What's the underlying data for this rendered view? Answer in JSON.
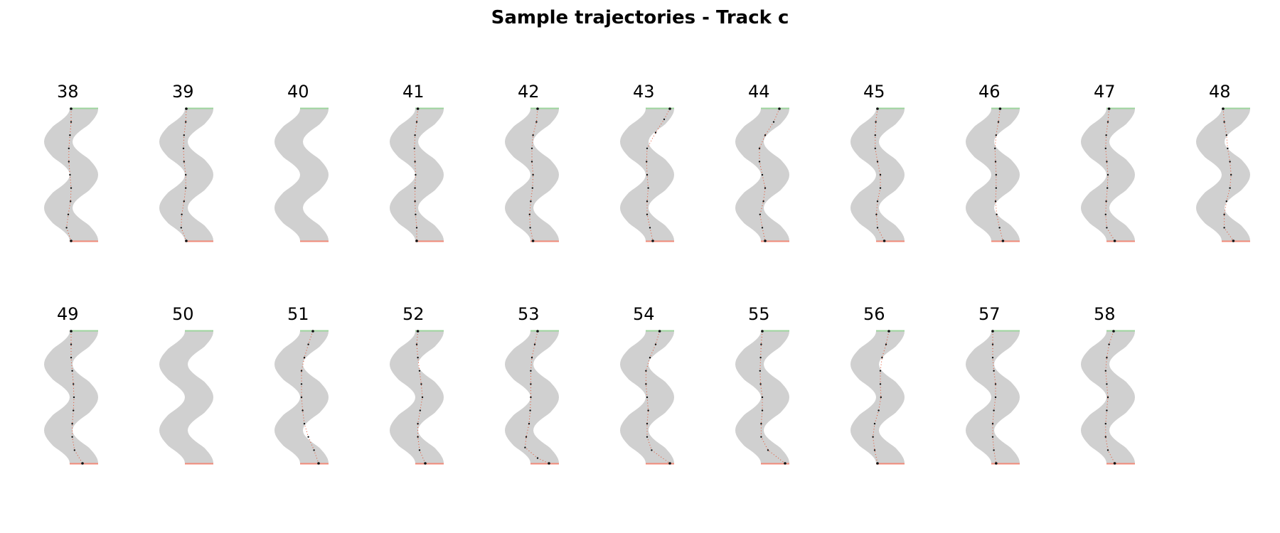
{
  "title": "Sample trajectories - Track c",
  "chart_data": {
    "type": "scatter",
    "title": "Sample trajectories - Track c",
    "panels": [
      {
        "label": "38",
        "trajectory": [
          [
            0.5,
            0.0
          ],
          [
            0.5,
            0.1
          ],
          [
            0.48,
            0.2
          ],
          [
            0.46,
            0.3
          ],
          [
            0.46,
            0.4
          ],
          [
            0.48,
            0.5
          ],
          [
            0.5,
            0.6
          ],
          [
            0.49,
            0.7
          ],
          [
            0.45,
            0.8
          ],
          [
            0.42,
            0.9
          ],
          [
            0.5,
            1.0
          ]
        ]
      },
      {
        "label": "39",
        "trajectory": [
          [
            0.5,
            0.0
          ],
          [
            0.49,
            0.1
          ],
          [
            0.46,
            0.2
          ],
          [
            0.45,
            0.3
          ],
          [
            0.46,
            0.4
          ],
          [
            0.49,
            0.5
          ],
          [
            0.49,
            0.6
          ],
          [
            0.46,
            0.7
          ],
          [
            0.42,
            0.8
          ],
          [
            0.41,
            0.9
          ],
          [
            0.5,
            1.0
          ]
        ]
      },
      {
        "label": "40",
        "trajectory": []
      },
      {
        "label": "41",
        "trajectory": [
          [
            0.52,
            0.0
          ],
          [
            0.5,
            0.1
          ],
          [
            0.47,
            0.2
          ],
          [
            0.46,
            0.3
          ],
          [
            0.47,
            0.4
          ],
          [
            0.48,
            0.5
          ],
          [
            0.47,
            0.6
          ],
          [
            0.47,
            0.7
          ],
          [
            0.48,
            0.8
          ],
          [
            0.5,
            0.9
          ],
          [
            0.5,
            1.0
          ]
        ]
      },
      {
        "label": "42",
        "trajectory": [
          [
            0.6,
            0.0
          ],
          [
            0.58,
            0.1
          ],
          [
            0.52,
            0.2
          ],
          [
            0.5,
            0.3
          ],
          [
            0.5,
            0.4
          ],
          [
            0.52,
            0.5
          ],
          [
            0.51,
            0.6
          ],
          [
            0.48,
            0.7
          ],
          [
            0.46,
            0.8
          ],
          [
            0.47,
            0.9
          ],
          [
            0.52,
            1.0
          ]
        ]
      },
      {
        "label": "43",
        "trajectory": [
          [
            0.9,
            0.0
          ],
          [
            0.8,
            0.08
          ],
          [
            0.65,
            0.18
          ],
          [
            0.5,
            0.3
          ],
          [
            0.49,
            0.4
          ],
          [
            0.5,
            0.5
          ],
          [
            0.52,
            0.6
          ],
          [
            0.5,
            0.7
          ],
          [
            0.5,
            0.8
          ],
          [
            0.55,
            0.9
          ],
          [
            0.6,
            1.0
          ]
        ]
      },
      {
        "label": "44",
        "trajectory": [
          [
            0.8,
            0.0
          ],
          [
            0.7,
            0.1
          ],
          [
            0.55,
            0.2
          ],
          [
            0.45,
            0.3
          ],
          [
            0.45,
            0.4
          ],
          [
            0.5,
            0.5
          ],
          [
            0.55,
            0.6
          ],
          [
            0.52,
            0.7
          ],
          [
            0.46,
            0.8
          ],
          [
            0.5,
            0.9
          ],
          [
            0.55,
            1.0
          ]
        ]
      },
      {
        "label": "45",
        "trajectory": [
          [
            0.5,
            0.0
          ],
          [
            0.47,
            0.1
          ],
          [
            0.46,
            0.2
          ],
          [
            0.46,
            0.3
          ],
          [
            0.5,
            0.4
          ],
          [
            0.55,
            0.5
          ],
          [
            0.55,
            0.6
          ],
          [
            0.5,
            0.7
          ],
          [
            0.48,
            0.8
          ],
          [
            0.5,
            0.9
          ],
          [
            0.62,
            1.0
          ]
        ]
      },
      {
        "label": "46",
        "trajectory": [
          [
            0.63,
            0.0
          ],
          [
            0.6,
            0.1
          ],
          [
            0.56,
            0.2
          ],
          [
            0.54,
            0.3
          ],
          [
            0.55,
            0.4
          ],
          [
            0.56,
            0.5
          ],
          [
            0.56,
            0.6
          ],
          [
            0.55,
            0.7
          ],
          [
            0.57,
            0.8
          ],
          [
            0.62,
            0.9
          ],
          [
            0.68,
            1.0
          ]
        ]
      },
      {
        "label": "47",
        "trajectory": [
          [
            0.52,
            0.0
          ],
          [
            0.5,
            0.1
          ],
          [
            0.47,
            0.2
          ],
          [
            0.46,
            0.3
          ],
          [
            0.48,
            0.4
          ],
          [
            0.5,
            0.5
          ],
          [
            0.49,
            0.6
          ],
          [
            0.47,
            0.7
          ],
          [
            0.46,
            0.8
          ],
          [
            0.48,
            0.9
          ],
          [
            0.62,
            1.0
          ]
        ]
      },
      {
        "label": "48",
        "trajectory": [
          [
            0.5,
            0.0
          ],
          [
            0.52,
            0.1
          ],
          [
            0.56,
            0.2
          ],
          [
            0.58,
            0.3
          ],
          [
            0.62,
            0.4
          ],
          [
            0.64,
            0.5
          ],
          [
            0.62,
            0.6
          ],
          [
            0.56,
            0.7
          ],
          [
            0.52,
            0.8
          ],
          [
            0.52,
            0.9
          ],
          [
            0.68,
            1.0
          ]
        ]
      },
      {
        "label": "49",
        "trajectory": [
          [
            0.5,
            0.0
          ],
          [
            0.5,
            0.1
          ],
          [
            0.5,
            0.2
          ],
          [
            0.52,
            0.3
          ],
          [
            0.54,
            0.4
          ],
          [
            0.55,
            0.5
          ],
          [
            0.54,
            0.6
          ],
          [
            0.52,
            0.7
          ],
          [
            0.52,
            0.8
          ],
          [
            0.56,
            0.9
          ],
          [
            0.7,
            1.0
          ]
        ]
      },
      {
        "label": "50",
        "trajectory": []
      },
      {
        "label": "51",
        "trajectory": [
          [
            0.7,
            0.0
          ],
          [
            0.62,
            0.1
          ],
          [
            0.55,
            0.2
          ],
          [
            0.5,
            0.3
          ],
          [
            0.5,
            0.4
          ],
          [
            0.5,
            0.5
          ],
          [
            0.52,
            0.6
          ],
          [
            0.55,
            0.7
          ],
          [
            0.62,
            0.8
          ],
          [
            0.72,
            0.9
          ],
          [
            0.8,
            1.0
          ]
        ]
      },
      {
        "label": "52",
        "trajectory": [
          [
            0.52,
            0.0
          ],
          [
            0.5,
            0.1
          ],
          [
            0.52,
            0.2
          ],
          [
            0.55,
            0.3
          ],
          [
            0.58,
            0.4
          ],
          [
            0.6,
            0.5
          ],
          [
            0.56,
            0.6
          ],
          [
            0.52,
            0.7
          ],
          [
            0.52,
            0.8
          ],
          [
            0.55,
            0.9
          ],
          [
            0.65,
            1.0
          ]
        ]
      },
      {
        "label": "53",
        "trajectory": [
          [
            0.6,
            0.0
          ],
          [
            0.55,
            0.1
          ],
          [
            0.5,
            0.2
          ],
          [
            0.48,
            0.3
          ],
          [
            0.48,
            0.4
          ],
          [
            0.48,
            0.5
          ],
          [
            0.47,
            0.6
          ],
          [
            0.45,
            0.7
          ],
          [
            0.4,
            0.8
          ],
          [
            0.38,
            0.88
          ],
          [
            0.6,
            0.96
          ],
          [
            0.8,
            1.0
          ]
        ]
      },
      {
        "label": "54",
        "trajectory": [
          [
            0.72,
            0.0
          ],
          [
            0.65,
            0.1
          ],
          [
            0.55,
            0.2
          ],
          [
            0.48,
            0.3
          ],
          [
            0.48,
            0.4
          ],
          [
            0.5,
            0.5
          ],
          [
            0.52,
            0.6
          ],
          [
            0.5,
            0.7
          ],
          [
            0.5,
            0.8
          ],
          [
            0.58,
            0.9
          ],
          [
            0.9,
            1.0
          ]
        ]
      },
      {
        "label": "55",
        "trajectory": [
          [
            0.5,
            0.0
          ],
          [
            0.48,
            0.1
          ],
          [
            0.47,
            0.2
          ],
          [
            0.46,
            0.3
          ],
          [
            0.47,
            0.4
          ],
          [
            0.5,
            0.5
          ],
          [
            0.5,
            0.6
          ],
          [
            0.48,
            0.7
          ],
          [
            0.48,
            0.8
          ],
          [
            0.6,
            0.9
          ],
          [
            0.9,
            1.0
          ]
        ]
      },
      {
        "label": "56",
        "trajectory": [
          [
            0.7,
            0.0
          ],
          [
            0.65,
            0.1
          ],
          [
            0.58,
            0.2
          ],
          [
            0.55,
            0.3
          ],
          [
            0.55,
            0.4
          ],
          [
            0.56,
            0.5
          ],
          [
            0.52,
            0.6
          ],
          [
            0.45,
            0.7
          ],
          [
            0.42,
            0.8
          ],
          [
            0.45,
            0.9
          ],
          [
            0.5,
            1.0
          ]
        ]
      },
      {
        "label": "57",
        "trajectory": [
          [
            0.5,
            0.0
          ],
          [
            0.5,
            0.1
          ],
          [
            0.5,
            0.2
          ],
          [
            0.52,
            0.3
          ],
          [
            0.55,
            0.4
          ],
          [
            0.55,
            0.5
          ],
          [
            0.52,
            0.6
          ],
          [
            0.5,
            0.7
          ],
          [
            0.5,
            0.8
          ],
          [
            0.52,
            0.9
          ],
          [
            0.56,
            1.0
          ]
        ]
      },
      {
        "label": "58",
        "trajectory": [
          [
            0.6,
            0.0
          ],
          [
            0.52,
            0.1
          ],
          [
            0.48,
            0.2
          ],
          [
            0.46,
            0.3
          ],
          [
            0.48,
            0.4
          ],
          [
            0.5,
            0.5
          ],
          [
            0.48,
            0.6
          ],
          [
            0.46,
            0.7
          ],
          [
            0.46,
            0.8
          ],
          [
            0.5,
            0.9
          ],
          [
            0.62,
            1.0
          ]
        ]
      }
    ],
    "colors": {
      "track": "#d0d0d0",
      "start_line": "#9dd49d",
      "finish_line": "#f08a78",
      "path_line": "#e4502f",
      "points": "#111111"
    }
  }
}
